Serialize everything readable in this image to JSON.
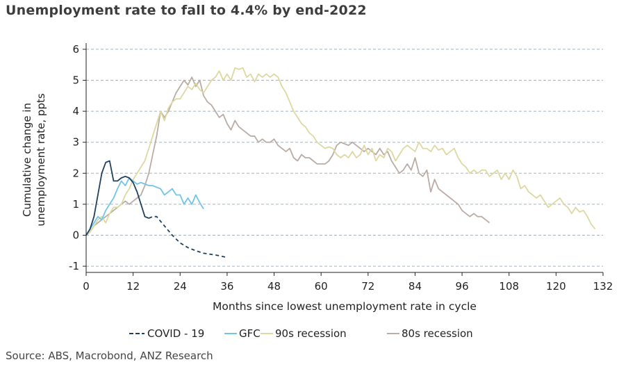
{
  "title": "Unemployment rate to fall to 4.4% by end-2022",
  "source": "Source: ABS, Macrobond, ANZ Research",
  "colors": {
    "covid": "#1f3f5f",
    "gfc": "#6fc4e8",
    "nineties": "#ddd8a2",
    "eighties": "#b9aca4",
    "grid": "#9fb5c0",
    "axis": "#222222"
  },
  "chart_data": {
    "type": "line",
    "title": "Unemployment rate to fall to 4.4% by end-2022",
    "xlabel": "Months since lowest unemployment rate in cycle",
    "ylabel": "Cumulative change in unemployment rate, ppts",
    "xlim": [
      0,
      132
    ],
    "ylim": [
      -1.2,
      6.2
    ],
    "xticks": [
      0,
      12,
      24,
      36,
      48,
      60,
      72,
      84,
      96,
      108,
      120,
      132
    ],
    "yticks": [
      -1,
      0,
      1,
      2,
      3,
      4,
      5,
      6
    ],
    "grid": "horizontal dashed",
    "legend": "bottom",
    "series": [
      {
        "name": "COVID - 19",
        "key": "covid",
        "points": [
          [
            0,
            0
          ],
          [
            1,
            0.2
          ],
          [
            2,
            0.6
          ],
          [
            3,
            1.3
          ],
          [
            4,
            2.0
          ],
          [
            5,
            2.35
          ],
          [
            6,
            2.4
          ],
          [
            7,
            1.75
          ],
          [
            8,
            1.75
          ],
          [
            9,
            1.85
          ],
          [
            10,
            1.9
          ],
          [
            11,
            1.85
          ],
          [
            12,
            1.7
          ],
          [
            13,
            1.4
          ],
          [
            14,
            1.0
          ],
          [
            15,
            0.6
          ],
          [
            16,
            0.55
          ]
        ],
        "forecast": [
          [
            16,
            0.55
          ],
          [
            17,
            0.6
          ],
          [
            18,
            0.6
          ],
          [
            20,
            0.3
          ],
          [
            22,
            0.0
          ],
          [
            24,
            -0.25
          ],
          [
            26,
            -0.4
          ],
          [
            28,
            -0.5
          ],
          [
            30,
            -0.58
          ],
          [
            32,
            -0.62
          ],
          [
            34,
            -0.66
          ],
          [
            36,
            -0.72
          ]
        ]
      },
      {
        "name": "GFC",
        "key": "gfc",
        "points": [
          [
            0,
            0
          ],
          [
            1,
            0.2
          ],
          [
            2,
            0.4
          ],
          [
            3,
            0.6
          ],
          [
            4,
            0.5
          ],
          [
            5,
            0.8
          ],
          [
            6,
            1.0
          ],
          [
            7,
            1.2
          ],
          [
            8,
            1.5
          ],
          [
            9,
            1.75
          ],
          [
            10,
            1.6
          ],
          [
            11,
            1.85
          ],
          [
            12,
            1.75
          ],
          [
            13,
            1.65
          ],
          [
            14,
            1.7
          ],
          [
            15,
            1.65
          ],
          [
            16,
            1.6
          ],
          [
            17,
            1.6
          ],
          [
            18,
            1.55
          ],
          [
            19,
            1.5
          ],
          [
            20,
            1.3
          ],
          [
            21,
            1.4
          ],
          [
            22,
            1.5
          ],
          [
            23,
            1.3
          ],
          [
            24,
            1.3
          ],
          [
            25,
            1.0
          ],
          [
            26,
            1.2
          ],
          [
            27,
            1.0
          ],
          [
            28,
            1.3
          ],
          [
            29,
            1.05
          ],
          [
            30,
            0.85
          ]
        ]
      },
      {
        "name": "90s recession",
        "key": "nineties",
        "points": [
          [
            0,
            0
          ],
          [
            1,
            0.1
          ],
          [
            2,
            0.3
          ],
          [
            3,
            0.5
          ],
          [
            4,
            0.6
          ],
          [
            5,
            0.4
          ],
          [
            6,
            0.7
          ],
          [
            7,
            0.9
          ],
          [
            8,
            0.9
          ],
          [
            9,
            1.0
          ],
          [
            10,
            1.3
          ],
          [
            11,
            1.5
          ],
          [
            12,
            1.8
          ],
          [
            13,
            2.0
          ],
          [
            14,
            2.2
          ],
          [
            15,
            2.4
          ],
          [
            16,
            2.8
          ],
          [
            17,
            3.2
          ],
          [
            18,
            3.6
          ],
          [
            19,
            4.0
          ],
          [
            20,
            3.7
          ],
          [
            21,
            4.1
          ],
          [
            22,
            4.3
          ],
          [
            23,
            4.4
          ],
          [
            24,
            4.4
          ],
          [
            25,
            4.6
          ],
          [
            26,
            4.8
          ],
          [
            27,
            4.7
          ],
          [
            28,
            4.9
          ],
          [
            29,
            4.7
          ],
          [
            30,
            4.6
          ],
          [
            31,
            4.8
          ],
          [
            32,
            5.0
          ],
          [
            33,
            5.1
          ],
          [
            34,
            5.3
          ],
          [
            35,
            5.0
          ],
          [
            36,
            5.2
          ],
          [
            37,
            5.0
          ],
          [
            38,
            5.4
          ],
          [
            39,
            5.35
          ],
          [
            40,
            5.4
          ],
          [
            41,
            5.1
          ],
          [
            42,
            5.2
          ],
          [
            43,
            4.95
          ],
          [
            44,
            5.2
          ],
          [
            45,
            5.1
          ],
          [
            46,
            5.2
          ],
          [
            47,
            5.1
          ],
          [
            48,
            5.2
          ],
          [
            49,
            5.1
          ],
          [
            50,
            4.8
          ],
          [
            51,
            4.6
          ],
          [
            52,
            4.3
          ],
          [
            53,
            4.0
          ],
          [
            54,
            3.8
          ],
          [
            55,
            3.6
          ],
          [
            56,
            3.5
          ],
          [
            57,
            3.3
          ],
          [
            58,
            3.2
          ],
          [
            59,
            3.0
          ],
          [
            60,
            2.9
          ],
          [
            61,
            2.8
          ],
          [
            62,
            2.85
          ],
          [
            63,
            2.8
          ],
          [
            64,
            2.6
          ],
          [
            65,
            2.5
          ],
          [
            66,
            2.6
          ],
          [
            67,
            2.5
          ],
          [
            68,
            2.7
          ],
          [
            69,
            2.5
          ],
          [
            70,
            2.6
          ],
          [
            71,
            2.9
          ],
          [
            72,
            2.6
          ],
          [
            73,
            2.8
          ],
          [
            74,
            2.4
          ],
          [
            75,
            2.6
          ],
          [
            76,
            2.5
          ],
          [
            77,
            2.8
          ],
          [
            78,
            2.7
          ],
          [
            79,
            2.4
          ],
          [
            80,
            2.6
          ],
          [
            81,
            2.8
          ],
          [
            82,
            2.9
          ],
          [
            83,
            2.8
          ],
          [
            84,
            2.7
          ],
          [
            85,
            3.0
          ],
          [
            86,
            2.8
          ],
          [
            87,
            2.8
          ],
          [
            88,
            2.7
          ],
          [
            89,
            2.9
          ],
          [
            90,
            2.75
          ],
          [
            91,
            2.8
          ],
          [
            92,
            2.6
          ],
          [
            93,
            2.7
          ],
          [
            94,
            2.8
          ],
          [
            95,
            2.5
          ],
          [
            96,
            2.3
          ],
          [
            97,
            2.2
          ],
          [
            98,
            2.0
          ],
          [
            99,
            2.1
          ],
          [
            100,
            2.0
          ],
          [
            101,
            2.1
          ],
          [
            102,
            2.1
          ],
          [
            103,
            1.9
          ],
          [
            104,
            2.0
          ],
          [
            105,
            2.1
          ],
          [
            106,
            1.8
          ],
          [
            107,
            2.0
          ],
          [
            108,
            1.8
          ],
          [
            109,
            2.1
          ],
          [
            110,
            1.9
          ],
          [
            111,
            1.5
          ],
          [
            112,
            1.6
          ],
          [
            113,
            1.4
          ],
          [
            114,
            1.3
          ],
          [
            115,
            1.2
          ],
          [
            116,
            1.3
          ],
          [
            117,
            1.1
          ],
          [
            118,
            0.9
          ],
          [
            119,
            1.0
          ],
          [
            120,
            1.1
          ],
          [
            121,
            1.2
          ],
          [
            122,
            1.0
          ],
          [
            123,
            0.9
          ],
          [
            124,
            0.7
          ],
          [
            125,
            0.9
          ],
          [
            126,
            0.75
          ],
          [
            127,
            0.8
          ],
          [
            128,
            0.6
          ],
          [
            129,
            0.35
          ],
          [
            130,
            0.2
          ]
        ]
      },
      {
        "name": "80s recession",
        "key": "eighties",
        "points": [
          [
            0,
            0
          ],
          [
            1,
            0.1
          ],
          [
            2,
            0.3
          ],
          [
            3,
            0.4
          ],
          [
            4,
            0.5
          ],
          [
            5,
            0.6
          ],
          [
            6,
            0.7
          ],
          [
            7,
            0.8
          ],
          [
            8,
            0.9
          ],
          [
            9,
            1.0
          ],
          [
            10,
            1.1
          ],
          [
            11,
            1.0
          ],
          [
            12,
            1.1
          ],
          [
            13,
            1.2
          ],
          [
            14,
            1.3
          ],
          [
            15,
            1.6
          ],
          [
            16,
            2.0
          ],
          [
            17,
            2.6
          ],
          [
            18,
            3.2
          ],
          [
            19,
            4.0
          ],
          [
            20,
            3.8
          ],
          [
            21,
            4.0
          ],
          [
            22,
            4.3
          ],
          [
            23,
            4.6
          ],
          [
            24,
            4.8
          ],
          [
            25,
            5.0
          ],
          [
            26,
            4.85
          ],
          [
            27,
            5.1
          ],
          [
            28,
            4.8
          ],
          [
            29,
            5.0
          ],
          [
            30,
            4.5
          ],
          [
            31,
            4.3
          ],
          [
            32,
            4.2
          ],
          [
            33,
            4.0
          ],
          [
            34,
            3.8
          ],
          [
            35,
            3.9
          ],
          [
            36,
            3.6
          ],
          [
            37,
            3.4
          ],
          [
            38,
            3.7
          ],
          [
            39,
            3.5
          ],
          [
            40,
            3.4
          ],
          [
            41,
            3.3
          ],
          [
            42,
            3.2
          ],
          [
            43,
            3.2
          ],
          [
            44,
            3.0
          ],
          [
            45,
            3.1
          ],
          [
            46,
            3.0
          ],
          [
            47,
            3.0
          ],
          [
            48,
            3.1
          ],
          [
            49,
            2.9
          ],
          [
            50,
            2.8
          ],
          [
            51,
            2.7
          ],
          [
            52,
            2.8
          ],
          [
            53,
            2.5
          ],
          [
            54,
            2.4
          ],
          [
            55,
            2.6
          ],
          [
            56,
            2.5
          ],
          [
            57,
            2.5
          ],
          [
            58,
            2.4
          ],
          [
            59,
            2.3
          ],
          [
            60,
            2.3
          ],
          [
            61,
            2.3
          ],
          [
            62,
            2.4
          ],
          [
            63,
            2.6
          ],
          [
            64,
            2.9
          ],
          [
            65,
            3.0
          ],
          [
            66,
            2.95
          ],
          [
            67,
            2.9
          ],
          [
            68,
            3.0
          ],
          [
            69,
            2.9
          ],
          [
            70,
            2.8
          ],
          [
            71,
            2.7
          ],
          [
            72,
            2.8
          ],
          [
            73,
            2.7
          ],
          [
            74,
            2.6
          ],
          [
            75,
            2.8
          ],
          [
            76,
            2.6
          ],
          [
            77,
            2.7
          ],
          [
            78,
            2.4
          ],
          [
            79,
            2.2
          ],
          [
            80,
            2.0
          ],
          [
            81,
            2.1
          ],
          [
            82,
            2.3
          ],
          [
            83,
            2.1
          ],
          [
            84,
            2.5
          ],
          [
            85,
            2.0
          ],
          [
            86,
            1.9
          ],
          [
            87,
            2.1
          ],
          [
            88,
            1.4
          ],
          [
            89,
            1.8
          ],
          [
            90,
            1.5
          ],
          [
            91,
            1.4
          ],
          [
            92,
            1.3
          ],
          [
            93,
            1.2
          ],
          [
            94,
            1.1
          ],
          [
            95,
            1.0
          ],
          [
            96,
            0.8
          ],
          [
            97,
            0.7
          ],
          [
            98,
            0.6
          ],
          [
            99,
            0.7
          ],
          [
            100,
            0.6
          ],
          [
            101,
            0.6
          ],
          [
            102,
            0.5
          ],
          [
            103,
            0.4
          ]
        ]
      }
    ]
  }
}
